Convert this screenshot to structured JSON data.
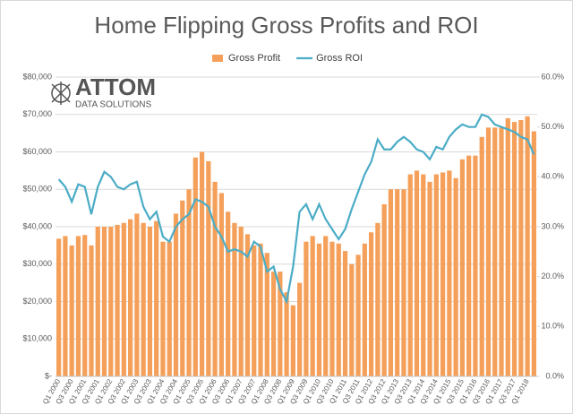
{
  "chart_data": {
    "type": "bar_line",
    "title": "Home Flipping Gross Profits and ROI",
    "logo": {
      "name": "ATTOM",
      "tagline": "DATA SOLUTIONS"
    },
    "categories": [
      "Q1 2000",
      null,
      "Q3 2000",
      null,
      "Q1 2001",
      null,
      "Q3 2001",
      null,
      "Q1 2002",
      null,
      "Q3 2002",
      null,
      "Q1 2003",
      null,
      "Q3 2003",
      null,
      "Q1 2004",
      null,
      "Q3 2004",
      null,
      "Q1 2005",
      null,
      "Q3 2005",
      null,
      "Q1 2006",
      null,
      "Q3 2006",
      null,
      "Q1 2007",
      null,
      "Q3 2007",
      null,
      "Q1 2008",
      null,
      "Q3 2008",
      null,
      "Q1 2009",
      null,
      "Q3 2009",
      null,
      "Q1 2010",
      null,
      "Q3 2010",
      null,
      "Q1 2011",
      null,
      "Q3 2011",
      null,
      "Q1 2012",
      null,
      "Q3 2012",
      null,
      "Q1 2013",
      null,
      "Q3 2013",
      null,
      "Q1 2014",
      null,
      "Q3 2014",
      null,
      "Q1 2015",
      null,
      "Q3 2015",
      null,
      "Q1 2016",
      null,
      "Q3 2016",
      null,
      "Q1 2017",
      null,
      "Q3 2017",
      null,
      "Q1 2018",
      null
    ],
    "series": [
      {
        "name": "Gross Profit",
        "color": "#f5a05a",
        "kind": "bar",
        "values": [
          36800,
          37500,
          35000,
          37500,
          37800,
          35000,
          40000,
          40000,
          40000,
          40500,
          41000,
          42000,
          43500,
          41000,
          40000,
          41500,
          36000,
          36000,
          43500,
          47000,
          50000,
          58500,
          60000,
          57500,
          52000,
          49000,
          44000,
          41000,
          40000,
          38000,
          35000,
          35500,
          33000,
          28000,
          28000,
          22500,
          19000,
          25000,
          36000,
          37500,
          35500,
          37500,
          36000,
          35500,
          33500,
          30000,
          32500,
          35500,
          38500,
          41000,
          46000,
          50000,
          50000,
          50000,
          54000,
          55000,
          54000,
          52000,
          54000,
          54500,
          55000,
          53000,
          58000,
          59000,
          59000,
          64000,
          66500,
          66500,
          66500,
          69000,
          68000,
          68500,
          69500,
          65500
        ]
      },
      {
        "name": "Gross ROI",
        "color": "#4bacc6",
        "kind": "line",
        "axis": "y2",
        "values": [
          39.5,
          38,
          35,
          38.5,
          38,
          32.5,
          38,
          41,
          40,
          38,
          37.5,
          38.5,
          39,
          34,
          31.5,
          33,
          28,
          27,
          30,
          31.5,
          32.5,
          35.5,
          35,
          34,
          30,
          28,
          25,
          25.5,
          25,
          24,
          27,
          26,
          21,
          22,
          17.5,
          15,
          22,
          33,
          34.5,
          31.5,
          34.5,
          31.5,
          29.5,
          27.5,
          29.5,
          33.5,
          37,
          40.5,
          43,
          47.5,
          45.5,
          45.5,
          47,
          48,
          47,
          45.5,
          45,
          43.5,
          46,
          45.5,
          48,
          49.5,
          50.5,
          50,
          50,
          52.5,
          52,
          50.5,
          50,
          49.5,
          49,
          48,
          47.5,
          44.5
        ]
      }
    ],
    "ylim": [
      0,
      80000
    ],
    "yticks": [
      {
        "value": 0,
        "label": "$-"
      },
      {
        "value": 10000,
        "label": "$10,000"
      },
      {
        "value": 20000,
        "label": "$20,000"
      },
      {
        "value": 30000,
        "label": "$30,000"
      },
      {
        "value": 40000,
        "label": "$40,000"
      },
      {
        "value": 50000,
        "label": "$50,000"
      },
      {
        "value": 60000,
        "label": "$60,000"
      },
      {
        "value": 70000,
        "label": "$70,000"
      },
      {
        "value": 80000,
        "label": "$80,000"
      }
    ],
    "y2lim": [
      0,
      60
    ],
    "y2ticks": [
      {
        "value": 0,
        "label": "0.0%"
      },
      {
        "value": 10,
        "label": "10.0%"
      },
      {
        "value": 20,
        "label": "20.0%"
      },
      {
        "value": 30,
        "label": "30.0%"
      },
      {
        "value": 40,
        "label": "40.0%"
      },
      {
        "value": 50,
        "label": "50.0%"
      },
      {
        "value": 60,
        "label": "60.0%"
      }
    ],
    "grid": true,
    "legend": "top"
  }
}
